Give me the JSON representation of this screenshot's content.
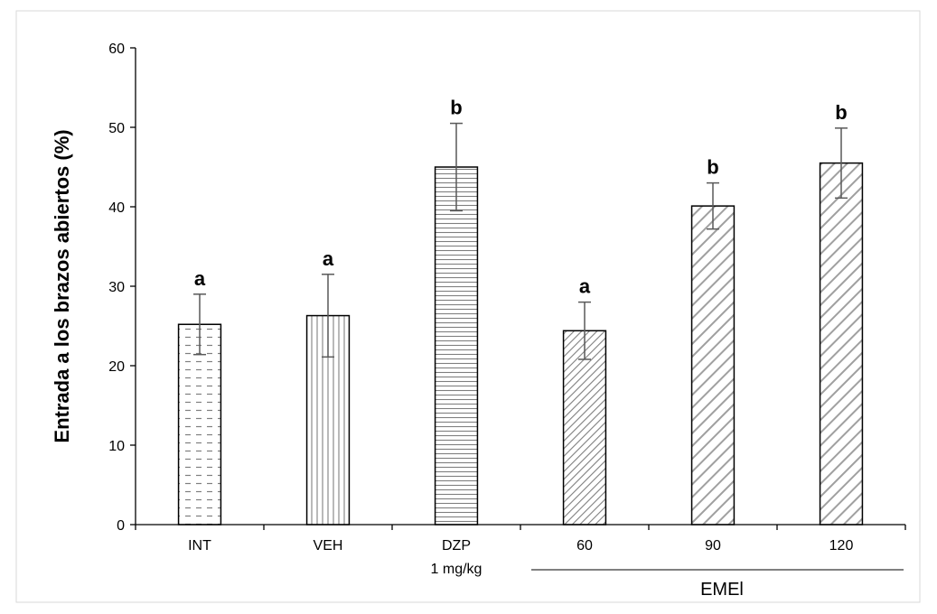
{
  "chart_data": {
    "type": "bar",
    "title": "",
    "xlabel": "",
    "ylabel": "Entrada a los brazos abiertos (%)",
    "ylim": [
      0,
      60
    ],
    "yticks": [
      0,
      10,
      20,
      30,
      40,
      50,
      60
    ],
    "grid": false,
    "legend": "none",
    "categories": [
      "INT",
      "VEH",
      "DZP",
      "60",
      "90",
      "120"
    ],
    "category_sublabels": [
      "",
      "",
      "1 mg/kg",
      "",
      "",
      ""
    ],
    "values": [
      25.2,
      26.3,
      45.0,
      24.4,
      40.1,
      45.5
    ],
    "errors": [
      3.8,
      5.2,
      5.5,
      3.6,
      2.9,
      4.4
    ],
    "significance": [
      "a",
      "a",
      "b",
      "a",
      "b",
      "b"
    ],
    "patterns": [
      "dashes",
      "vertical",
      "horizontal",
      "diag-dense",
      "diag-wide",
      "diag-wide"
    ],
    "group_label": {
      "text": "EMEl",
      "from": 3,
      "to": 5
    },
    "colors": {
      "bar_outline": "#000000",
      "pattern": "#7f7f7f",
      "error_bar": "#595959",
      "axis": "#000000"
    }
  }
}
